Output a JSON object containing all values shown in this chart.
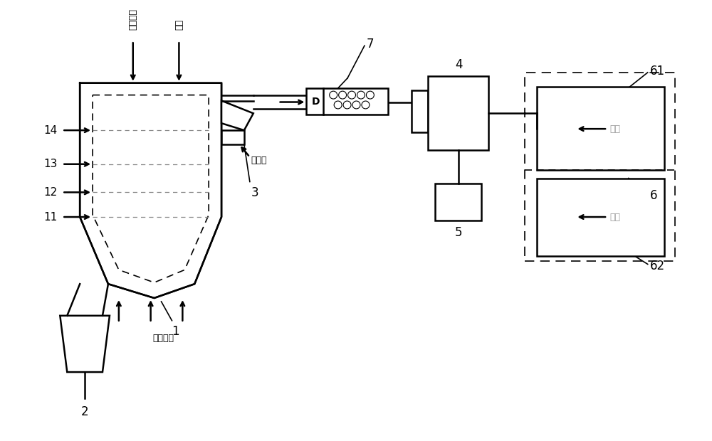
{
  "bg_color": "#ffffff",
  "line_color": "#000000",
  "fig_width": 10.0,
  "fig_height": 6.2,
  "labels": {
    "shenghuolaji": "生活垃圾",
    "cuijiao": "催焦",
    "shuizhengqi": "水蒸气",
    "fuyangkongqi": "富氧空气",
    "kongqi": "空气",
    "num1": "1",
    "num2": "2",
    "num3": "3",
    "num4": "4",
    "num5": "5",
    "num6": "6",
    "num7": "7",
    "num11": "11",
    "num12": "12",
    "num13": "13",
    "num14": "14",
    "num61": "61",
    "num62": "62",
    "D": "D"
  }
}
